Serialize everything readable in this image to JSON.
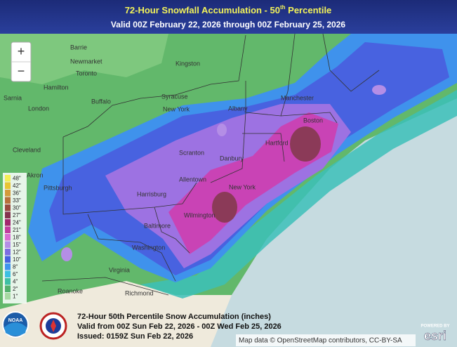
{
  "header": {
    "title": {
      "main": "72-Hour Snowfall Accumulation - 50",
      "sup": "th",
      "rest": " Percentile"
    },
    "subtitle": "Valid 00Z February 22, 2026 through 00Z February 25, 2026"
  },
  "map": {
    "zoom_in": "+",
    "zoom_out": "−",
    "legend": [
      {
        "label": "48\"",
        "color": "#f3ee55"
      },
      {
        "label": "42\"",
        "color": "#e8c433"
      },
      {
        "label": "36\"",
        "color": "#d49a3a"
      },
      {
        "label": "33\"",
        "color": "#b8703a"
      },
      {
        "label": "30\"",
        "color": "#9a4a3e"
      },
      {
        "label": "27\"",
        "color": "#84344e"
      },
      {
        "label": "24\"",
        "color": "#a3276e"
      },
      {
        "label": "21\"",
        "color": "#c23c9e"
      },
      {
        "label": "18\"",
        "color": "#d86cd2"
      },
      {
        "label": "15\"",
        "color": "#b48ee6"
      },
      {
        "label": "12\"",
        "color": "#7c6ee2"
      },
      {
        "label": "10\"",
        "color": "#4662e0"
      },
      {
        "label": "8\"",
        "color": "#3f94ee"
      },
      {
        "label": "6\"",
        "color": "#3cc0e2"
      },
      {
        "label": "4\"",
        "color": "#3dbfa3"
      },
      {
        "label": "2\"",
        "color": "#52b06c"
      },
      {
        "label": "1\"",
        "color": "#a6d9a2"
      }
    ],
    "places": [
      "Barrie",
      "Newmarket",
      "Toronto",
      "Hamilton",
      "London",
      "Sarnia",
      "Kingston",
      "Syracuse",
      "Buffalo",
      "New York",
      "Cleveland",
      "Akron",
      "Pittsburgh",
      "Harrisburg",
      "Baltimore",
      "Washington",
      "Richmond",
      "Roanoke",
      "Virginia",
      "Albany",
      "Boston",
      "Manchester",
      "Hartford",
      "Danbury",
      "Allentown",
      "Scranton",
      "Wilmington",
      "New York"
    ]
  },
  "footer": {
    "lines": [
      "72-Hour 50th Percentile Snow Accumulation (inches)",
      "Valid from 00Z Sun Feb 22, 2026 - 00Z Wed Feb 25, 2026",
      "Issued: 0159Z Sun Feb 22, 2026"
    ]
  },
  "attribution": "Map data © OpenStreetMap contributors, CC-BY-SA",
  "esri": {
    "powered_by": "POWERED BY",
    "logo": "esri"
  },
  "noaa": "NOAA"
}
